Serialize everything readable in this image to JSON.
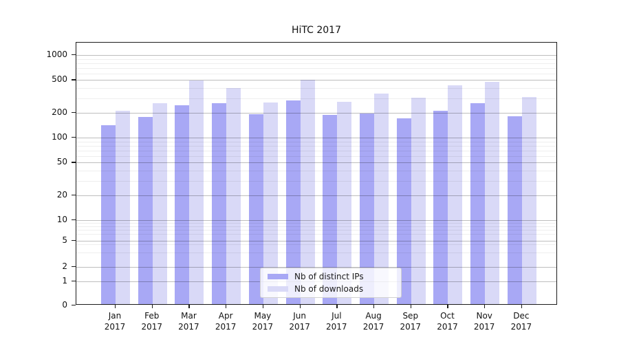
{
  "title": "HiTC 2017",
  "chart_data": {
    "type": "bar",
    "title": "HiTC 2017",
    "categories": [
      "Jan 2017",
      "Feb 2017",
      "Mar 2017",
      "Apr 2017",
      "May 2017",
      "Jun 2017",
      "Jul 2017",
      "Aug 2017",
      "Sep 2017",
      "Oct 2017",
      "Nov 2017",
      "Dec 2017"
    ],
    "series": [
      {
        "name": "Nb of distinct IPs",
        "color": "#a8a8f5",
        "values": [
          135,
          170,
          235,
          250,
          185,
          270,
          180,
          190,
          165,
          205,
          250,
          175
        ]
      },
      {
        "name": "Nb of downloads",
        "color": "#d9d9f7",
        "values": [
          205,
          250,
          470,
          380,
          255,
          480,
          260,
          330,
          295,
          410,
          455,
          300
        ]
      }
    ],
    "xlabel": "",
    "ylabel": "",
    "yscale": "symlog",
    "y_major_ticks": [
      0,
      1,
      2,
      5,
      10,
      20,
      50,
      100,
      200,
      500,
      1000
    ],
    "y_minor_ticks": [
      3,
      4,
      6,
      7,
      8,
      9,
      30,
      40,
      60,
      70,
      80,
      90,
      300,
      400,
      600,
      700,
      800,
      900
    ],
    "ylim": [
      0,
      1450
    ],
    "grid": "both",
    "legend_position": "lower center"
  },
  "legend": {
    "items": [
      {
        "label": "Nb of distinct IPs",
        "color": "#a8a8f5"
      },
      {
        "label": "Nb of downloads",
        "color": "#d9d9f7"
      }
    ]
  }
}
